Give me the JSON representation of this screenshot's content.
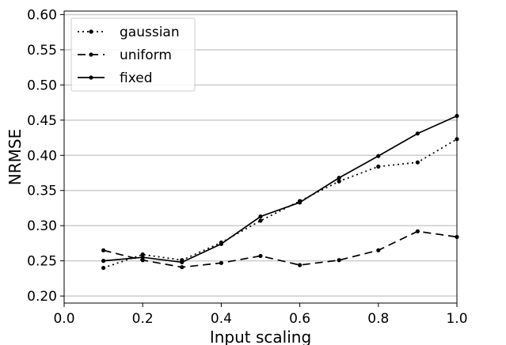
{
  "chart_data": {
    "type": "line",
    "title": "",
    "xlabel": "Input scaling",
    "ylabel": "NRMSE",
    "xlim": [
      0.0,
      1.0
    ],
    "ylim": [
      0.19,
      0.605
    ],
    "xticks": [
      "0.0",
      "0.2",
      "0.4",
      "0.6",
      "0.8",
      "1.0"
    ],
    "yticks": [
      "0.20",
      "0.25",
      "0.30",
      "0.35",
      "0.40",
      "0.45",
      "0.50",
      "0.55",
      "0.60"
    ],
    "grid": "horizontal",
    "legend_position": "top-left",
    "x": [
      0.1,
      0.2,
      0.3,
      0.4,
      0.5,
      0.6,
      0.7,
      0.8,
      0.9,
      1.0
    ],
    "series": [
      {
        "name": "gaussian",
        "line_style": "dotted",
        "color": "#000000",
        "values": [
          0.24,
          0.259,
          0.251,
          0.276,
          0.307,
          0.335,
          0.363,
          0.384,
          0.39,
          0.423
        ]
      },
      {
        "name": "uniform",
        "line_style": "dashed",
        "color": "#000000",
        "values": [
          0.265,
          0.251,
          0.241,
          0.247,
          0.257,
          0.244,
          0.251,
          0.265,
          0.292,
          0.284
        ]
      },
      {
        "name": "fixed",
        "line_style": "solid",
        "color": "#000000",
        "values": [
          0.25,
          0.255,
          0.248,
          0.274,
          0.313,
          0.333,
          0.368,
          0.399,
          0.431,
          0.456
        ]
      }
    ]
  }
}
